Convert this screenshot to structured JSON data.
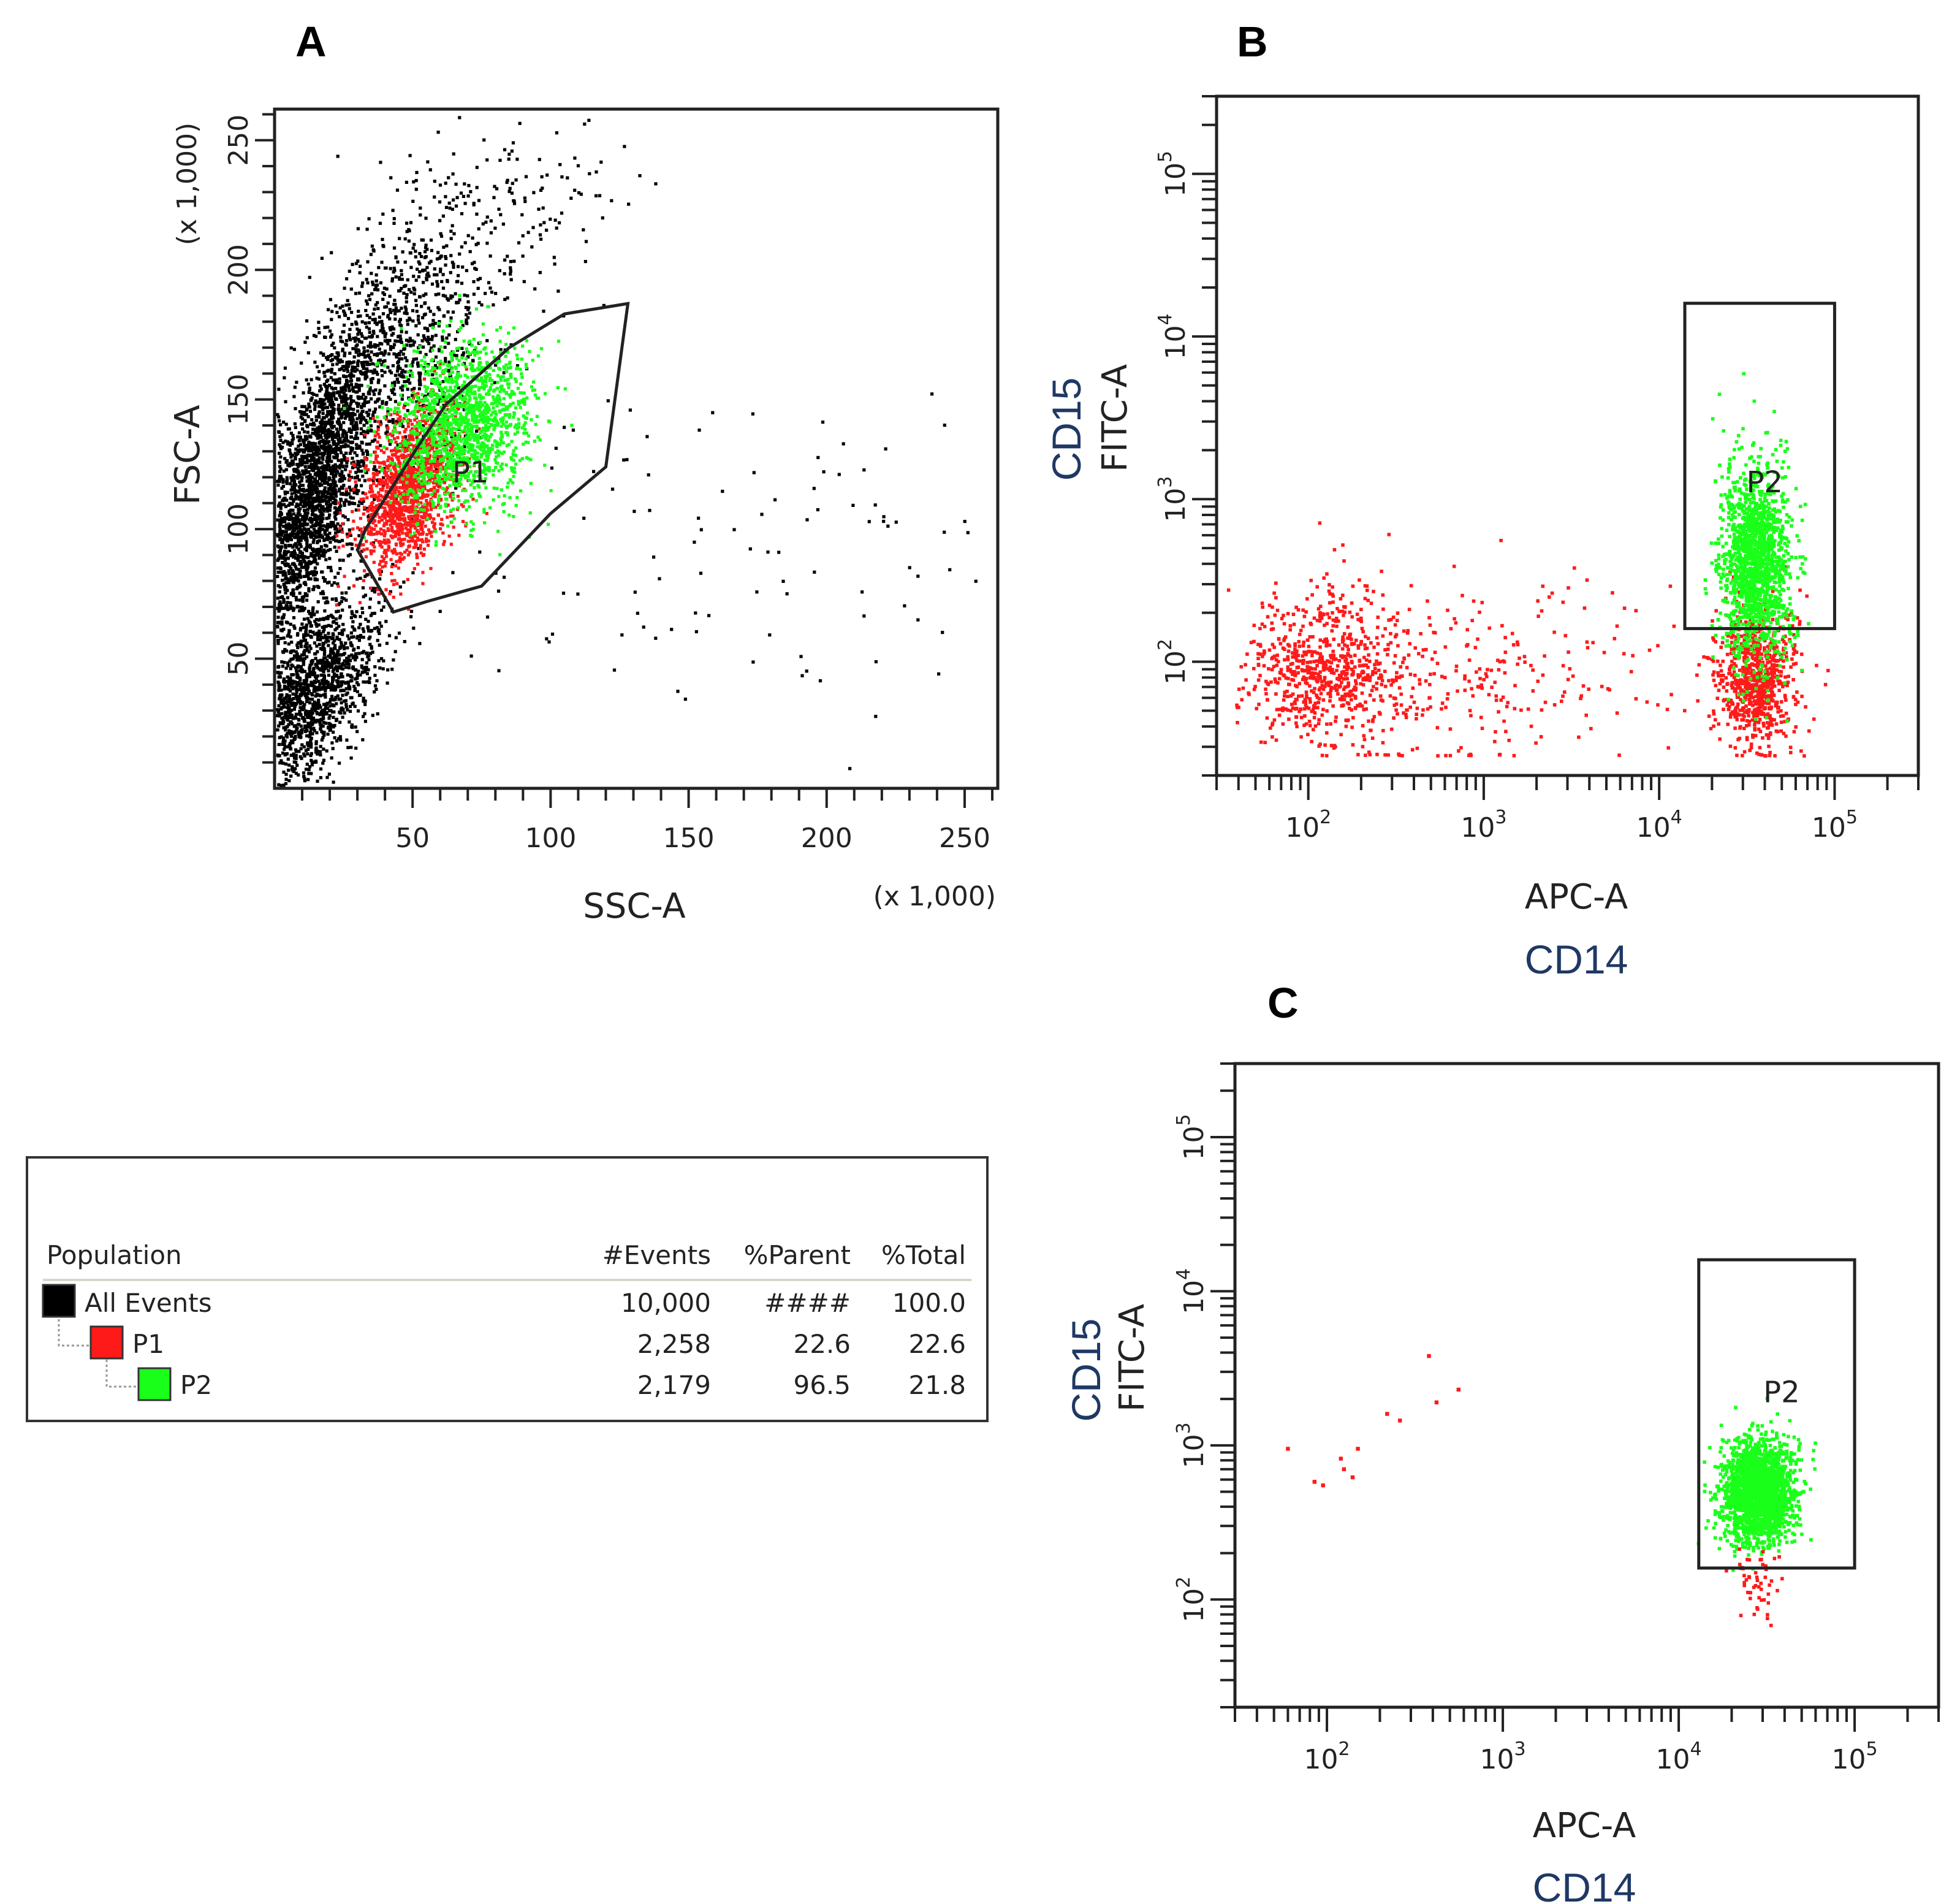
{
  "colors": {
    "all_events": "#000000",
    "p1": "#ff1a1a",
    "p2": "#1aff1a",
    "marker": "#1f3864",
    "frame": "#222222"
  },
  "chart_data": [
    {
      "panel": "A",
      "type": "scatter",
      "xlabel": "SSC-A",
      "ylabel": "FSC-A",
      "x_unit_note": "(x 1,000)",
      "y_unit_note": "(x 1,000)",
      "xlim": [
        0,
        262
      ],
      "ylim": [
        0,
        262
      ],
      "xticks": [
        50,
        100,
        150,
        200,
        250
      ],
      "yticks": [
        50,
        100,
        150,
        200,
        250
      ],
      "gate": {
        "name": "P1",
        "polygon": [
          [
            30,
            92
          ],
          [
            33,
            100
          ],
          [
            52,
            132
          ],
          [
            62,
            148
          ],
          [
            85,
            170
          ],
          [
            105,
            183
          ],
          [
            128,
            187
          ],
          [
            120,
            124
          ],
          [
            100,
            106
          ],
          [
            75,
            78
          ],
          [
            55,
            72
          ],
          [
            43,
            68
          ]
        ]
      },
      "clusters": [
        {
          "population": "All Events",
          "cx": 14,
          "cy": 115,
          "sx": 9,
          "sy": 34,
          "n": 2600,
          "rot": 0.45
        },
        {
          "population": "All Events",
          "cx": 14,
          "cy": 38,
          "sx": 11,
          "sy": 22,
          "n": 1500,
          "rot": 0.7
        },
        {
          "population": "All Events",
          "cx": 48,
          "cy": 170,
          "sx": 15,
          "sy": 28,
          "n": 800,
          "rot": 0.4
        },
        {
          "population": "All Events",
          "cx": 85,
          "cy": 225,
          "sx": 20,
          "sy": 20,
          "n": 160,
          "rot": 0.3
        },
        {
          "population": "All Events",
          "cx": 160,
          "cy": 90,
          "sx": 55,
          "sy": 35,
          "n": 110,
          "rot": 0.0
        },
        {
          "population": "P1",
          "cx": 48,
          "cy": 115,
          "sx": 9,
          "sy": 17,
          "n": 1350,
          "rot": 0.5
        },
        {
          "population": "P2",
          "cx": 68,
          "cy": 140,
          "sx": 13,
          "sy": 17,
          "n": 1450,
          "rot": 0.45
        }
      ]
    },
    {
      "panel": "B",
      "type": "scatter",
      "xlabel": "APC-A",
      "ylabel": "FITC-A",
      "x_marker": "CD14",
      "y_marker": "CD15",
      "xscale": "log",
      "yscale": "log",
      "xlim": [
        30,
        300000
      ],
      "ylim": [
        20,
        300000
      ],
      "xticks": [
        100,
        1000,
        10000,
        100000
      ],
      "yticks": [
        100,
        1000,
        10000,
        100000
      ],
      "gate": {
        "name": "P2",
        "x": [
          14000,
          100000
        ],
        "y": [
          160,
          16000
        ]
      },
      "clusters": [
        {
          "population": "P1",
          "cx_log": 2.1,
          "cy_log": 1.95,
          "sx": 0.22,
          "sy": 0.22,
          "n": 700
        },
        {
          "population": "P1",
          "cx_log": 3.0,
          "cy_log": 1.9,
          "sx": 0.55,
          "sy": 0.28,
          "n": 260
        },
        {
          "population": "P1",
          "cx_log": 4.55,
          "cy_log": 1.9,
          "sx": 0.11,
          "sy": 0.22,
          "n": 800
        },
        {
          "population": "P2",
          "cx_log": 4.55,
          "cy_log": 2.6,
          "sx": 0.1,
          "sy": 0.3,
          "n": 1500
        }
      ]
    },
    {
      "panel": "C",
      "type": "scatter",
      "xlabel": "APC-A",
      "ylabel": "FITC-A",
      "x_marker": "CD14",
      "y_marker": "CD15",
      "xscale": "log",
      "yscale": "log",
      "xlim": [
        30,
        300000
      ],
      "ylim": [
        20,
        300000
      ],
      "xticks": [
        100,
        1000,
        10000,
        100000
      ],
      "yticks": [
        100,
        1000,
        10000,
        100000
      ],
      "gate": {
        "name": "P2",
        "x": [
          13000,
          100000
        ],
        "y": [
          160,
          16000
        ]
      },
      "clusters": [
        {
          "population": "P2",
          "cx_log": 4.45,
          "cy_log": 2.7,
          "sx": 0.1,
          "sy": 0.16,
          "n": 2000
        },
        {
          "population": "P1",
          "cx_log": 4.45,
          "cy_log": 2.1,
          "sx": 0.08,
          "sy": 0.12,
          "n": 50
        }
      ],
      "outliers": [
        [
          60,
          950
        ],
        [
          85,
          580
        ],
        [
          95,
          550
        ],
        [
          120,
          820
        ],
        [
          125,
          700
        ],
        [
          140,
          620
        ],
        [
          150,
          950
        ],
        [
          220,
          1600
        ],
        [
          260,
          1450
        ],
        [
          380,
          3800
        ],
        [
          420,
          1900
        ],
        [
          560,
          2300
        ]
      ]
    }
  ],
  "population_table": {
    "headers": [
      "Population",
      "#Events",
      "%Parent",
      "%Total"
    ],
    "rows": [
      {
        "name": "All Events",
        "events": "10,000",
        "parent": "####",
        "total": "100.0"
      },
      {
        "name": "P1",
        "events": "2,258",
        "parent": "22.6",
        "total": "22.6"
      },
      {
        "name": "P2",
        "events": "2,179",
        "parent": "96.5",
        "total": "21.8"
      }
    ]
  }
}
